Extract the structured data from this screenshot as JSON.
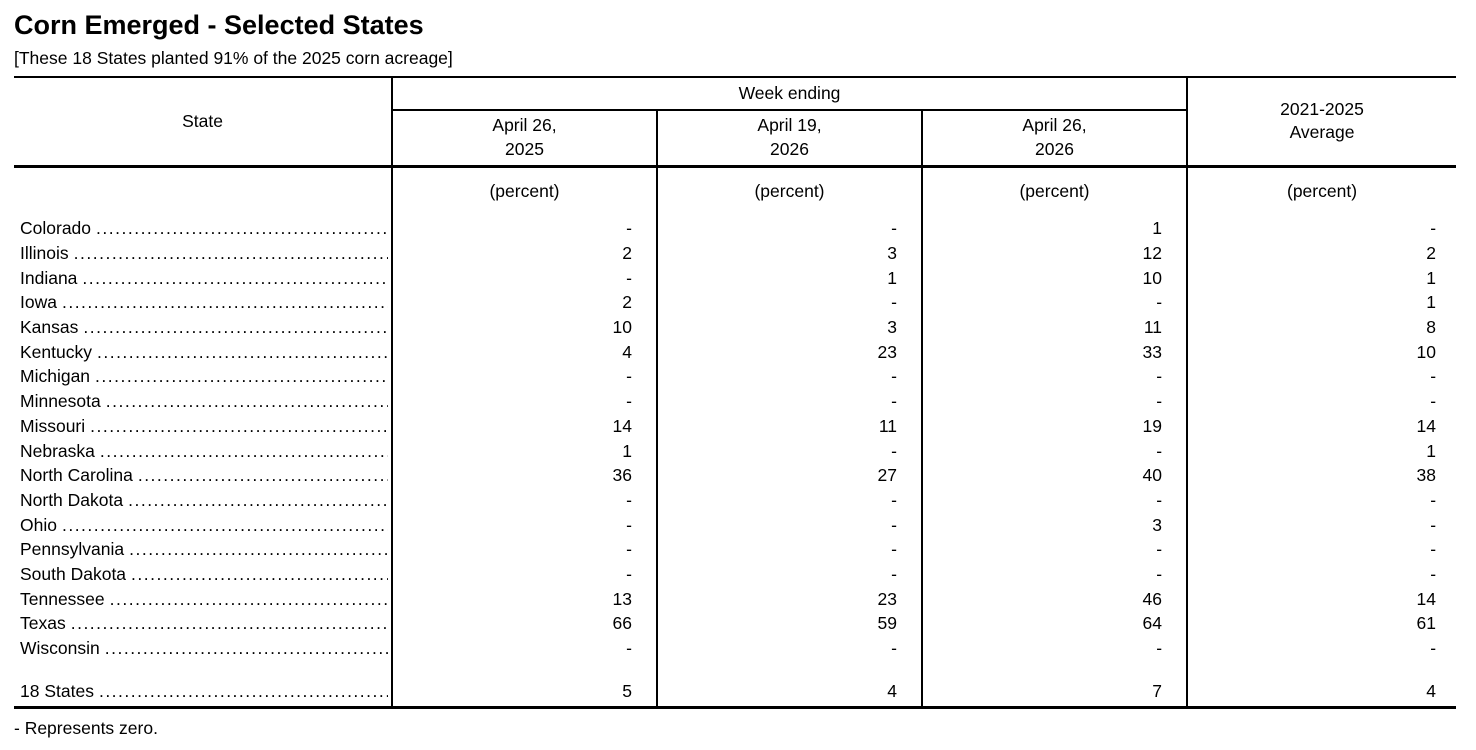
{
  "page": {
    "title": "Corn Emerged - Selected States",
    "subtitle": "[These 18 States planted 91% of the 2025 corn acreage]",
    "footnote": "- Represents zero."
  },
  "table": {
    "state_header": "State",
    "week_ending_header": "Week ending",
    "average_header": "2021-2025\nAverage",
    "date_columns": [
      "April 26,\n2025",
      "April 19,\n2026",
      "April 26,\n2026"
    ],
    "unit_label": "(percent)",
    "unit_labels": [
      "(percent)",
      "(percent)",
      "(percent)",
      "(percent)"
    ],
    "rows": [
      {
        "state": "Colorado",
        "values": [
          "-",
          "-",
          "1",
          "-"
        ]
      },
      {
        "state": "Illinois",
        "values": [
          "2",
          "3",
          "12",
          "2"
        ]
      },
      {
        "state": "Indiana",
        "values": [
          "-",
          "1",
          "10",
          "1"
        ]
      },
      {
        "state": "Iowa",
        "values": [
          "2",
          "-",
          "-",
          "1"
        ]
      },
      {
        "state": "Kansas",
        "values": [
          "10",
          "3",
          "11",
          "8"
        ]
      },
      {
        "state": "Kentucky",
        "values": [
          "4",
          "23",
          "33",
          "10"
        ]
      },
      {
        "state": "Michigan",
        "values": [
          "-",
          "-",
          "-",
          "-"
        ]
      },
      {
        "state": "Minnesota",
        "values": [
          "-",
          "-",
          "-",
          "-"
        ]
      },
      {
        "state": "Missouri",
        "values": [
          "14",
          "11",
          "19",
          "14"
        ]
      },
      {
        "state": "Nebraska",
        "values": [
          "1",
          "-",
          "-",
          "1"
        ]
      },
      {
        "state": "North Carolina",
        "values": [
          "36",
          "27",
          "40",
          "38"
        ]
      },
      {
        "state": "North Dakota",
        "values": [
          "-",
          "-",
          "-",
          "-"
        ]
      },
      {
        "state": "Ohio",
        "values": [
          "-",
          "-",
          "3",
          "-"
        ]
      },
      {
        "state": "Pennsylvania",
        "values": [
          "-",
          "-",
          "-",
          "-"
        ]
      },
      {
        "state": "South Dakota",
        "values": [
          "-",
          "-",
          "-",
          "-"
        ]
      },
      {
        "state": "Tennessee",
        "values": [
          "13",
          "23",
          "46",
          "14"
        ]
      },
      {
        "state": "Texas",
        "values": [
          "66",
          "59",
          "64",
          "61"
        ]
      },
      {
        "state": "Wisconsin",
        "values": [
          "-",
          "-",
          "-",
          "-"
        ]
      }
    ],
    "total_row": {
      "state": "18 States",
      "values": [
        "5",
        "4",
        "7",
        "4"
      ]
    }
  }
}
